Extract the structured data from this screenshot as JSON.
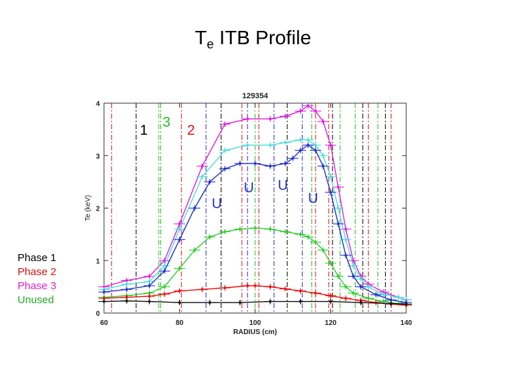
{
  "slide": {
    "title_main": "T",
    "title_sub": "e",
    "title_rest": " ITB Profile"
  },
  "legend": [
    {
      "label": "Phase 1",
      "color": "#000000"
    },
    {
      "label": "Phase 2",
      "color": "#dd1111"
    },
    {
      "label": "Phase 3",
      "color": "#dd22cc"
    },
    {
      "label": "Unused",
      "color": "#22aa22"
    }
  ],
  "chart_data": {
    "type": "line",
    "title": "129354",
    "xlabel": "RADIUS (cm)",
    "ylabel": "Te (keV)",
    "xlim": [
      60,
      140
    ],
    "ylim": [
      0,
      4
    ],
    "xticks": [
      60,
      80,
      100,
      120,
      140
    ],
    "yticks": [
      0,
      1,
      2,
      3,
      4
    ],
    "series": [
      {
        "color": "#dd22dd",
        "x": [
          60,
          66,
          72,
          76,
          80,
          86,
          92,
          98,
          104,
          108,
          112,
          114,
          116,
          118,
          120,
          122,
          124,
          126,
          128,
          130,
          134,
          138,
          140
        ],
        "y": [
          0.5,
          0.62,
          0.7,
          1.0,
          1.7,
          2.8,
          3.6,
          3.7,
          3.7,
          3.75,
          3.85,
          3.95,
          3.85,
          3.65,
          3.2,
          2.4,
          1.6,
          1.0,
          0.7,
          0.55,
          0.4,
          0.3,
          0.25
        ]
      },
      {
        "color": "#55dddd",
        "x": [
          60,
          66,
          72,
          76,
          80,
          86,
          92,
          98,
          104,
          108,
          112,
          114,
          116,
          118,
          120,
          122,
          124,
          126,
          128,
          130,
          134,
          138,
          140
        ],
        "y": [
          0.45,
          0.55,
          0.6,
          0.9,
          1.6,
          2.6,
          3.1,
          3.2,
          3.2,
          3.25,
          3.3,
          3.3,
          3.2,
          3.0,
          2.6,
          2.0,
          1.4,
          0.9,
          0.65,
          0.5,
          0.35,
          0.3,
          0.25
        ]
      },
      {
        "color": "#2233cc",
        "x": [
          60,
          66,
          72,
          76,
          80,
          84,
          88,
          92,
          96,
          100,
          104,
          108,
          110,
          112,
          114,
          116,
          118,
          120,
          122,
          124,
          126,
          128,
          132,
          136,
          140
        ],
        "y": [
          0.4,
          0.45,
          0.52,
          0.8,
          1.4,
          2.0,
          2.5,
          2.75,
          2.85,
          2.85,
          2.8,
          2.85,
          2.95,
          3.1,
          3.2,
          3.1,
          2.8,
          2.3,
          1.7,
          1.1,
          0.7,
          0.5,
          0.35,
          0.25,
          0.2
        ]
      },
      {
        "color": "#33cc33",
        "x": [
          60,
          66,
          72,
          76,
          80,
          84,
          88,
          92,
          96,
          100,
          104,
          108,
          112,
          114,
          116,
          118,
          120,
          122,
          124,
          126,
          130,
          134,
          138,
          140
        ],
        "y": [
          0.3,
          0.33,
          0.38,
          0.5,
          0.85,
          1.2,
          1.45,
          1.55,
          1.6,
          1.62,
          1.6,
          1.55,
          1.5,
          1.45,
          1.35,
          1.2,
          0.95,
          0.7,
          0.5,
          0.38,
          0.28,
          0.22,
          0.18,
          0.15
        ]
      },
      {
        "color": "#ee1111",
        "x": [
          60,
          66,
          72,
          76,
          80,
          86,
          92,
          98,
          100,
          104,
          108,
          112,
          116,
          120,
          124,
          128,
          132,
          136,
          140
        ],
        "y": [
          0.28,
          0.3,
          0.32,
          0.36,
          0.42,
          0.45,
          0.48,
          0.52,
          0.52,
          0.5,
          0.46,
          0.42,
          0.38,
          0.33,
          0.28,
          0.24,
          0.2,
          0.17,
          0.15
        ]
      },
      {
        "color": "#111111",
        "x": [
          60,
          66,
          72,
          80,
          88,
          96,
          104,
          112,
          120,
          128,
          136,
          140
        ],
        "y": [
          0.22,
          0.23,
          0.22,
          0.2,
          0.2,
          0.2,
          0.22,
          0.22,
          0.22,
          0.2,
          0.18,
          0.17
        ]
      }
    ],
    "vlines": [
      {
        "x": 62,
        "color": "#dd1111"
      },
      {
        "x": 68.5,
        "color": "#000000"
      },
      {
        "x": 74.5,
        "color": "#22bb22"
      },
      {
        "x": 75,
        "color": "#22bb22"
      },
      {
        "x": 80.5,
        "color": "#dd1111"
      },
      {
        "x": 87,
        "color": "#2233cc"
      },
      {
        "x": 91,
        "color": "#000000"
      },
      {
        "x": 96.5,
        "color": "#dd1111"
      },
      {
        "x": 98,
        "color": "#2233cc"
      },
      {
        "x": 100,
        "color": "#22bb22"
      },
      {
        "x": 101,
        "color": "#dd1111"
      },
      {
        "x": 105,
        "color": "#2233cc"
      },
      {
        "x": 108.5,
        "color": "#000000"
      },
      {
        "x": 112.5,
        "color": "#2233cc"
      },
      {
        "x": 115,
        "color": "#22bb22"
      },
      {
        "x": 116,
        "color": "#dd1111"
      },
      {
        "x": 119.5,
        "color": "#dd1111"
      },
      {
        "x": 120.5,
        "color": "#000000"
      },
      {
        "x": 122.5,
        "color": "#22bb22"
      },
      {
        "x": 126.5,
        "color": "#22bb22"
      },
      {
        "x": 128.5,
        "color": "#000000"
      },
      {
        "x": 130,
        "color": "#dd1111"
      },
      {
        "x": 132.5,
        "color": "#22bb22"
      },
      {
        "x": 134.5,
        "color": "#000000"
      },
      {
        "x": 136,
        "color": "#dd1111"
      }
    ],
    "annotations": [
      {
        "text": "1",
        "x": 69.5,
        "y": 3.4,
        "color": "#000000"
      },
      {
        "text": "3",
        "x": 75.5,
        "y": 3.55,
        "color": "#22bb22"
      },
      {
        "text": "2",
        "x": 82,
        "y": 3.4,
        "color": "#dd1111"
      },
      {
        "text": "U",
        "x": 88.5,
        "y": 2.0,
        "color": "#2233cc"
      },
      {
        "text": "U",
        "x": 97,
        "y": 2.3,
        "color": "#2233cc"
      },
      {
        "text": "U",
        "x": 106,
        "y": 2.35,
        "color": "#2233cc"
      },
      {
        "text": "U",
        "x": 114,
        "y": 2.1,
        "color": "#2233cc"
      }
    ]
  }
}
